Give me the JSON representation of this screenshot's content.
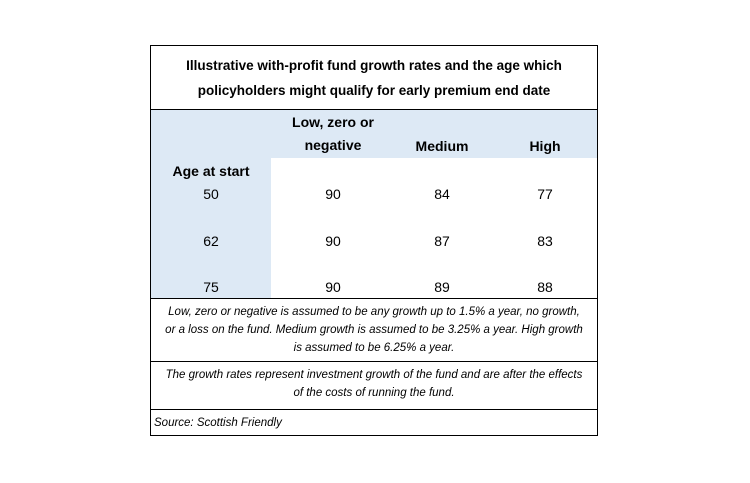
{
  "title": [
    "Illustrative with-profit fund growth rates and the age which",
    "policyholders might qualify for early premium end date"
  ],
  "table": {
    "columns": [
      "Low, zero or negative",
      "Medium",
      "High"
    ],
    "row_header": "Age at start",
    "rows": [
      {
        "age": 50,
        "values": [
          90,
          84,
          77
        ]
      },
      {
        "age": 62,
        "values": [
          90,
          87,
          83
        ]
      },
      {
        "age": 75,
        "values": [
          90,
          89,
          88
        ]
      }
    ]
  },
  "notes": [
    "Low, zero or negative is assumed to be any growth up to 1.5% a year, no growth, or a loss on the fund. Medium growth is assumed to be 3.25% a year. High growth is assumed to be 6.25% a year.",
    "The growth rates represent investment growth of the fund and are after the effects of the costs of running the fund."
  ],
  "source": "Source: Scottish Friendly"
}
